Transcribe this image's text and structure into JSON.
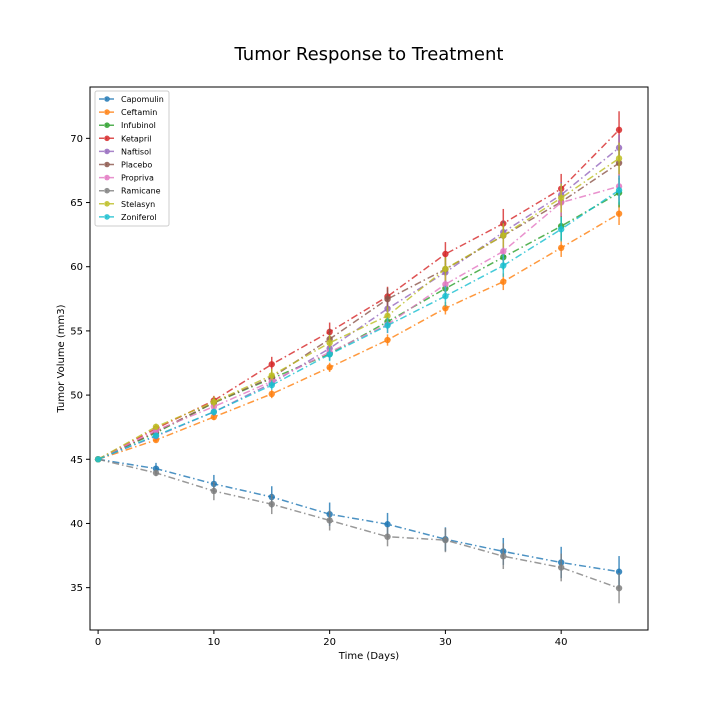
{
  "chart_data": {
    "type": "line",
    "title": "Tumor Response to Treatment",
    "xlabel": "Time (Days)",
    "ylabel": "Tumor Volume (mm3)",
    "xlim": [
      -0.7,
      47.5
    ],
    "ylim": [
      31.7,
      74.0
    ],
    "xticks": [
      0,
      10,
      20,
      30,
      40
    ],
    "yticks": [
      35,
      40,
      45,
      50,
      55,
      60,
      65,
      70
    ],
    "grid": false,
    "legend_position": "top-left",
    "line_style": "dash-dot",
    "x": [
      0,
      5,
      10,
      15,
      20,
      25,
      30,
      35,
      40,
      45
    ],
    "series": [
      {
        "name": "Capomulin",
        "color": "#1f77b4",
        "values": [
          45.0,
          44.27,
          43.08,
          42.06,
          40.72,
          39.94,
          38.77,
          37.82,
          36.96,
          36.24
        ],
        "errors": [
          0,
          0.45,
          0.7,
          0.84,
          0.91,
          0.88,
          0.93,
          1.05,
          1.22,
          1.22
        ]
      },
      {
        "name": "Ceftamin",
        "color": "#ff7f0e",
        "values": [
          45.0,
          46.5,
          48.29,
          50.09,
          52.16,
          54.29,
          56.77,
          58.83,
          61.47,
          64.13
        ],
        "errors": [
          0,
          0.16,
          0.24,
          0.33,
          0.36,
          0.44,
          0.49,
          0.65,
          0.71,
          0.88
        ]
      },
      {
        "name": "Infubinol",
        "color": "#2ca02c",
        "values": [
          45.0,
          47.06,
          49.4,
          51.3,
          53.2,
          55.72,
          58.3,
          60.74,
          63.16,
          65.76
        ],
        "errors": [
          0,
          0.24,
          0.28,
          0.36,
          0.48,
          0.55,
          0.63,
          0.98,
          1.06,
          1.14
        ]
      },
      {
        "name": "Ketapril",
        "color": "#d62728",
        "values": [
          45.0,
          47.39,
          49.58,
          52.4,
          54.92,
          57.68,
          60.99,
          63.37,
          66.07,
          70.66
        ],
        "errors": [
          0,
          0.26,
          0.36,
          0.58,
          0.73,
          0.76,
          0.93,
          1.13,
          1.16,
          1.45
        ]
      },
      {
        "name": "Naftisol",
        "color": "#9467bd",
        "values": [
          45.0,
          46.8,
          48.69,
          50.93,
          53.64,
          56.73,
          59.56,
          62.69,
          65.6,
          69.27
        ],
        "errors": [
          0,
          0.2,
          0.31,
          0.37,
          0.53,
          0.6,
          0.72,
          0.9,
          1.0,
          1.02
        ]
      },
      {
        "name": "Placebo",
        "color": "#8c564b",
        "values": [
          45.0,
          47.13,
          49.42,
          51.36,
          54.36,
          57.48,
          59.81,
          62.42,
          65.05,
          68.08
        ],
        "errors": [
          0,
          0.22,
          0.4,
          0.61,
          0.84,
          0.88,
          0.93,
          1.13,
          1.16,
          1.29
        ]
      },
      {
        "name": "Propriva",
        "color": "#e377c2",
        "values": [
          45.0,
          47.25,
          49.1,
          51.07,
          53.35,
          55.5,
          58.63,
          61.2,
          65.0,
          66.26
        ],
        "errors": [
          0,
          0.23,
          0.38,
          0.5,
          0.6,
          0.67,
          0.76,
          0.91,
          1.07,
          1.15
        ]
      },
      {
        "name": "Ramicane",
        "color": "#7f7f7f",
        "values": [
          45.0,
          43.94,
          42.53,
          41.5,
          40.24,
          38.97,
          38.7,
          37.45,
          36.57,
          34.96
        ],
        "errors": [
          0,
          0.26,
          0.72,
          0.77,
          0.79,
          0.75,
          0.94,
          1.0,
          1.08,
          1.18
        ]
      },
      {
        "name": "Stelasyn",
        "color": "#bcbd22",
        "values": [
          45.0,
          47.53,
          49.46,
          51.53,
          54.07,
          56.17,
          59.83,
          62.44,
          65.36,
          68.44
        ],
        "errors": [
          0,
          0.24,
          0.43,
          0.49,
          0.62,
          0.74,
          0.9,
          0.94,
          1.13,
          1.23
        ]
      },
      {
        "name": "Zoniferol",
        "color": "#17becf",
        "values": [
          45.0,
          46.85,
          48.69,
          50.78,
          53.17,
          55.43,
          57.71,
          60.09,
          62.92,
          65.96
        ],
        "errors": [
          0,
          0.19,
          0.26,
          0.37,
          0.53,
          0.6,
          0.8,
          0.88,
          0.95,
          1.14
        ]
      }
    ]
  }
}
